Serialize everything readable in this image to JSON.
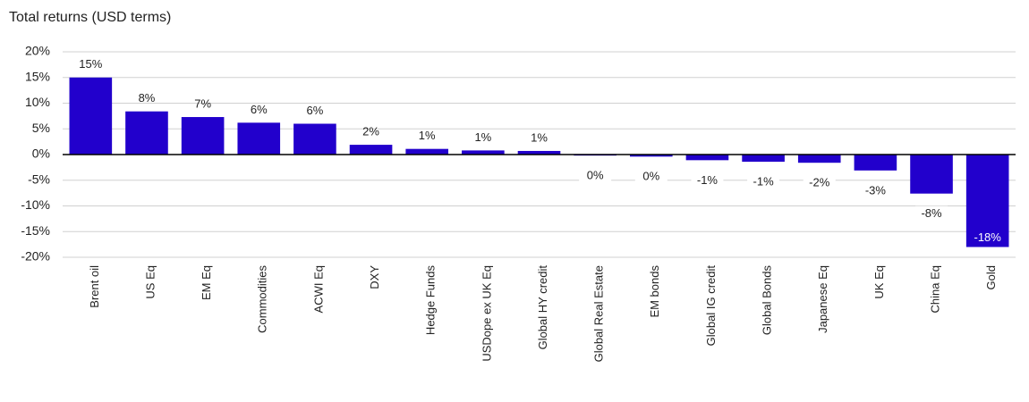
{
  "chart_data": {
    "type": "bar",
    "title": "Total returns (USD terms)",
    "categories": [
      "Brent oil",
      "US Eq",
      "EM Eq",
      "Commodities",
      "ACWI Eq",
      "DXY",
      "Hedge Funds",
      "USDope ex UK Eq",
      "Global HY credit",
      "Global Real Estate",
      "EM bonds",
      "Global IG credit",
      "Global Bonds",
      "Japanese Eq",
      "UK Eq",
      "China Eq",
      "Gold"
    ],
    "values": [
      15,
      8.4,
      7.3,
      6.2,
      6.0,
      1.9,
      1.1,
      0.8,
      0.7,
      -0.2,
      -0.4,
      -1.1,
      -1.4,
      -1.6,
      -3.1,
      -7.6,
      -18
    ],
    "value_labels": [
      "15%",
      "8%",
      "7%",
      "6%",
      "6%",
      "2%",
      "1%",
      "1%",
      "1%",
      "0%",
      "0%",
      "-1%",
      "-1%",
      "-2%",
      "-3%",
      "-8%",
      "-18%"
    ],
    "color": "#2200cc",
    "ylim": [
      -20,
      20
    ],
    "yticks": [
      {
        "value": -20,
        "label": "-20%"
      },
      {
        "value": -15,
        "label": "-15%"
      },
      {
        "value": -10,
        "label": "-10%"
      },
      {
        "value": -5,
        "label": "-5%"
      },
      {
        "value": 0,
        "label": "0%"
      },
      {
        "value": 5,
        "label": "5%"
      },
      {
        "value": 10,
        "label": "10%"
      },
      {
        "value": 15,
        "label": "15%"
      },
      {
        "value": 20,
        "label": "20%"
      }
    ],
    "grid": true
  }
}
